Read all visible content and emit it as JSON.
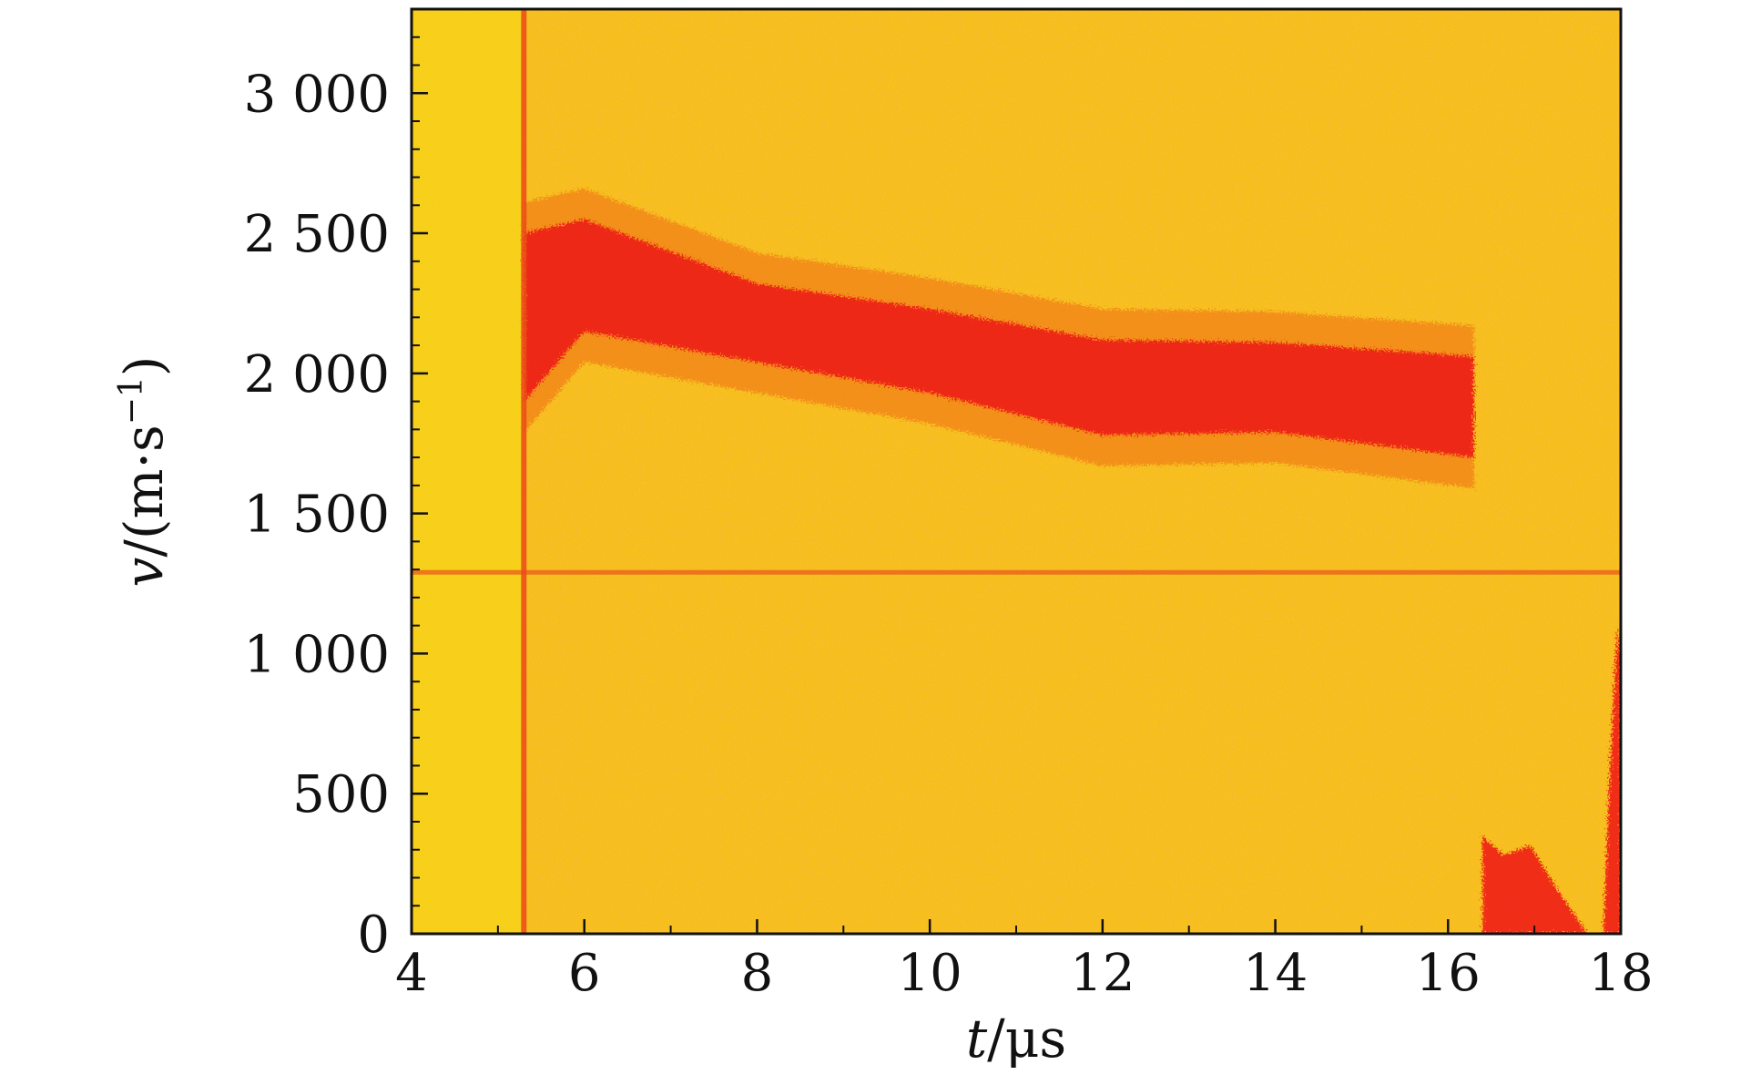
{
  "chart_data": {
    "type": "heatmap",
    "title": "",
    "xlabel": {
      "var": "t",
      "unit": "/μs"
    },
    "ylabel": {
      "var": "v",
      "unit": "/(m·s",
      "sup": "−1",
      "tail": ")"
    },
    "xlim": [
      4,
      18
    ],
    "ylim": [
      0,
      3300
    ],
    "x_ticks": [
      {
        "value": 4,
        "label": "4"
      },
      {
        "value": 6,
        "label": "6"
      },
      {
        "value": 8,
        "label": "8"
      },
      {
        "value": 10,
        "label": "10"
      },
      {
        "value": 12,
        "label": "12"
      },
      {
        "value": 14,
        "label": "14"
      },
      {
        "value": 16,
        "label": "16"
      },
      {
        "value": 18,
        "label": "18"
      }
    ],
    "y_ticks": [
      {
        "value": 0,
        "label": "0"
      },
      {
        "value": 500,
        "label": "500"
      },
      {
        "value": 1000,
        "label": "1 000"
      },
      {
        "value": 1500,
        "label": "1 500"
      },
      {
        "value": 2000,
        "label": "2 000"
      },
      {
        "value": 2500,
        "label": "2 500"
      },
      {
        "value": 3000,
        "label": "3 000"
      }
    ],
    "colors": {
      "background": "#f7c21b",
      "low": "#f7d21a",
      "high": "#ee1d16",
      "frame": "#111111"
    },
    "signal_band": {
      "description_points": [
        {
          "t": 5.3,
          "v_center": 2200,
          "v_half_width": 300
        },
        {
          "t": 6.0,
          "v_center": 2350,
          "v_half_width": 200
        },
        {
          "t": 8.0,
          "v_center": 2180,
          "v_half_width": 140
        },
        {
          "t": 10.0,
          "v_center": 2080,
          "v_half_width": 150
        },
        {
          "t": 12.0,
          "v_center": 1950,
          "v_half_width": 170
        },
        {
          "t": 14.0,
          "v_center": 1950,
          "v_half_width": 160
        },
        {
          "t": 16.3,
          "v_center": 1880,
          "v_half_width": 180
        }
      ],
      "start_t": 5.3,
      "end_t": 16.35
    },
    "reference_line": {
      "v": 1290
    },
    "onset_line": {
      "t": 5.3
    },
    "late_features": [
      {
        "t_start": 16.4,
        "t_end": 17.3,
        "v_max": 350
      },
      {
        "t_start": 17.8,
        "t_end": 18.0,
        "v_max": 1100
      }
    ]
  }
}
